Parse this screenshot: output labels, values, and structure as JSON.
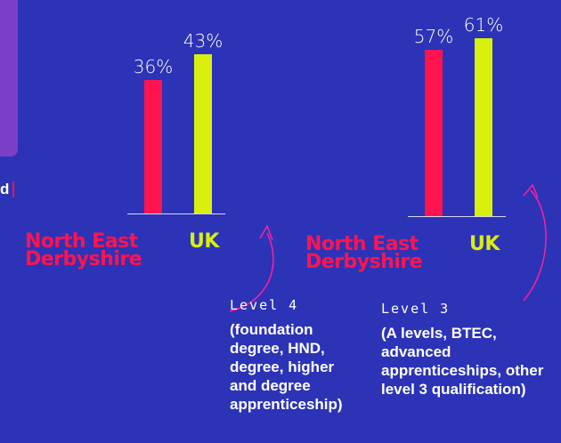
{
  "fragment": "d",
  "chart_data": [
    {
      "type": "bar",
      "categories": [
        "North East Derbyshire",
        "UK"
      ],
      "values": [
        36,
        43
      ],
      "value_labels": [
        "36%",
        "43%"
      ],
      "colors": [
        "#ff1450",
        "#d9f00c"
      ],
      "ylim": [
        0,
        48
      ]
    },
    {
      "type": "bar",
      "categories": [
        "North East Derbyshire",
        "UK"
      ],
      "values": [
        57,
        61
      ],
      "value_labels": [
        "57%",
        "61%"
      ],
      "colors": [
        "#ff1450",
        "#d9f00c"
      ],
      "ylim": [
        0,
        64
      ]
    }
  ],
  "captions": [
    {
      "level": "Level 4",
      "description": "(foundation degree, HND, degree, higher and degree apprenticeship)"
    },
    {
      "level": "Level 3",
      "description": "(A levels, BTEC, advanced apprenticeships, other level 3 qualification)"
    }
  ]
}
